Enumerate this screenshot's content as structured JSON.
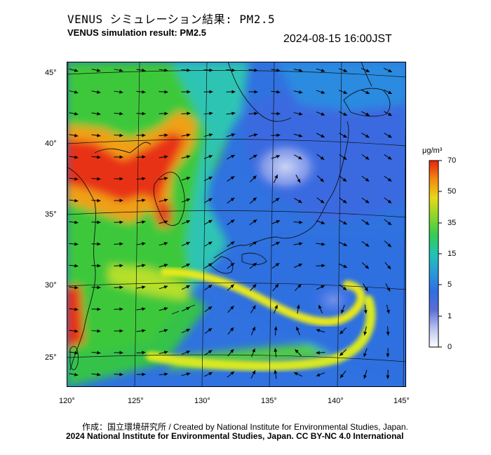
{
  "header": {
    "title_jp": "VENUS シミュレーション結果: PM2.5",
    "title_en": "VENUS simulation result: PM2.5",
    "timestamp": "2024-08-15 16:00JST"
  },
  "map": {
    "lat_labels": [
      "45°",
      "40°",
      "35°",
      "30°",
      "25°"
    ],
    "lon_labels": [
      "120°",
      "125°",
      "130°",
      "135°",
      "140°",
      "145°"
    ],
    "palette": {
      "ocean_green": "#33cc33",
      "blue_low": "#2f6fe0",
      "red_high": "#e8210c",
      "orange": "#f5a10d",
      "yellow": "#e8e81a",
      "cyan": "#2ec4c4"
    }
  },
  "colorbar": {
    "unit": "μg/m³",
    "ticks": [
      "70",
      "50",
      "35",
      "15",
      "5",
      "1",
      "0"
    ],
    "colors": [
      "#e8210c",
      "#f28a0f",
      "#e8d81a",
      "#8ad62a",
      "#33cc55",
      "#22c4b4",
      "#2a9ad8",
      "#2f6fe0",
      "#5a6ed8",
      "#b9c2ee",
      "#ffffff"
    ]
  },
  "footer": {
    "credit_jp_en": "作成：国立環境研究所 / Created by National Institute for Environmental Studies, Japan.",
    "copyright": "2024 National Institute for Environmental Studies, Japan. CC BY-NC 4.0 International"
  }
}
